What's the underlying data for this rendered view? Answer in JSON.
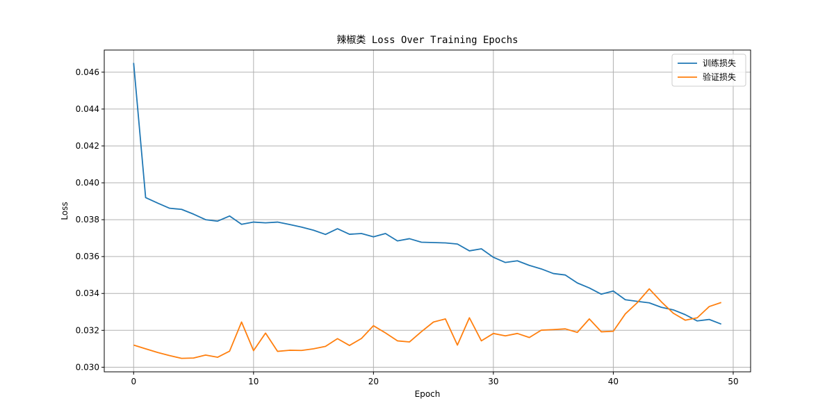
{
  "chart_data": {
    "type": "line",
    "title": "辣椒类 Loss Over Training Epochs",
    "xlabel": "Epoch",
    "ylabel": "Loss",
    "xlim": [
      -2.45,
      51.45
    ],
    "ylim": [
      0.02975,
      0.0472
    ],
    "xticks": [
      0,
      10,
      20,
      30,
      40,
      50
    ],
    "yticks": [
      0.03,
      0.032,
      0.034,
      0.036,
      0.038,
      0.04,
      0.042,
      0.044,
      0.046
    ],
    "ytick_labels": [
      "0.030",
      "0.032",
      "0.034",
      "0.036",
      "0.038",
      "0.040",
      "0.042",
      "0.044",
      "0.046"
    ],
    "grid": true,
    "legend_position": "top-right",
    "x": [
      0,
      1,
      2,
      3,
      4,
      5,
      6,
      7,
      8,
      9,
      10,
      11,
      12,
      13,
      14,
      15,
      16,
      17,
      18,
      19,
      20,
      21,
      22,
      23,
      24,
      25,
      26,
      27,
      28,
      29,
      30,
      31,
      32,
      33,
      34,
      35,
      36,
      37,
      38,
      39,
      40,
      41,
      42,
      43,
      44,
      45,
      46,
      47,
      48,
      49
    ],
    "series": [
      {
        "name": "训练损失",
        "color": "#1f77b4",
        "values": [
          0.0465,
          0.0392,
          0.0389,
          0.03862,
          0.03856,
          0.0383,
          0.038,
          0.03792,
          0.0382,
          0.03775,
          0.03787,
          0.03783,
          0.03787,
          0.03774,
          0.0376,
          0.03743,
          0.0372,
          0.03751,
          0.03721,
          0.03725,
          0.03707,
          0.03725,
          0.03685,
          0.03697,
          0.03678,
          0.03676,
          0.03674,
          0.03668,
          0.03631,
          0.03642,
          0.03596,
          0.03568,
          0.03577,
          0.03552,
          0.03533,
          0.03508,
          0.035,
          0.03457,
          0.0343,
          0.03396,
          0.03413,
          0.03366,
          0.03357,
          0.03349,
          0.03325,
          0.03311,
          0.03285,
          0.03251,
          0.03259,
          0.03234
        ]
      },
      {
        "name": "验证损失",
        "color": "#ff7f0e",
        "values": [
          0.0312,
          0.031,
          0.0308,
          0.03063,
          0.03048,
          0.0305,
          0.03066,
          0.03054,
          0.03087,
          0.03245,
          0.0309,
          0.03185,
          0.03086,
          0.03092,
          0.03091,
          0.031,
          0.03113,
          0.03155,
          0.03118,
          0.03156,
          0.03225,
          0.03186,
          0.03143,
          0.03137,
          0.03193,
          0.03245,
          0.03262,
          0.0312,
          0.03268,
          0.03143,
          0.03183,
          0.0317,
          0.03183,
          0.03161,
          0.03201,
          0.03204,
          0.03208,
          0.03189,
          0.03262,
          0.03192,
          0.03195,
          0.03289,
          0.0335,
          0.03425,
          0.03355,
          0.03293,
          0.03255,
          0.03268,
          0.03329,
          0.03351
        ]
      }
    ]
  }
}
